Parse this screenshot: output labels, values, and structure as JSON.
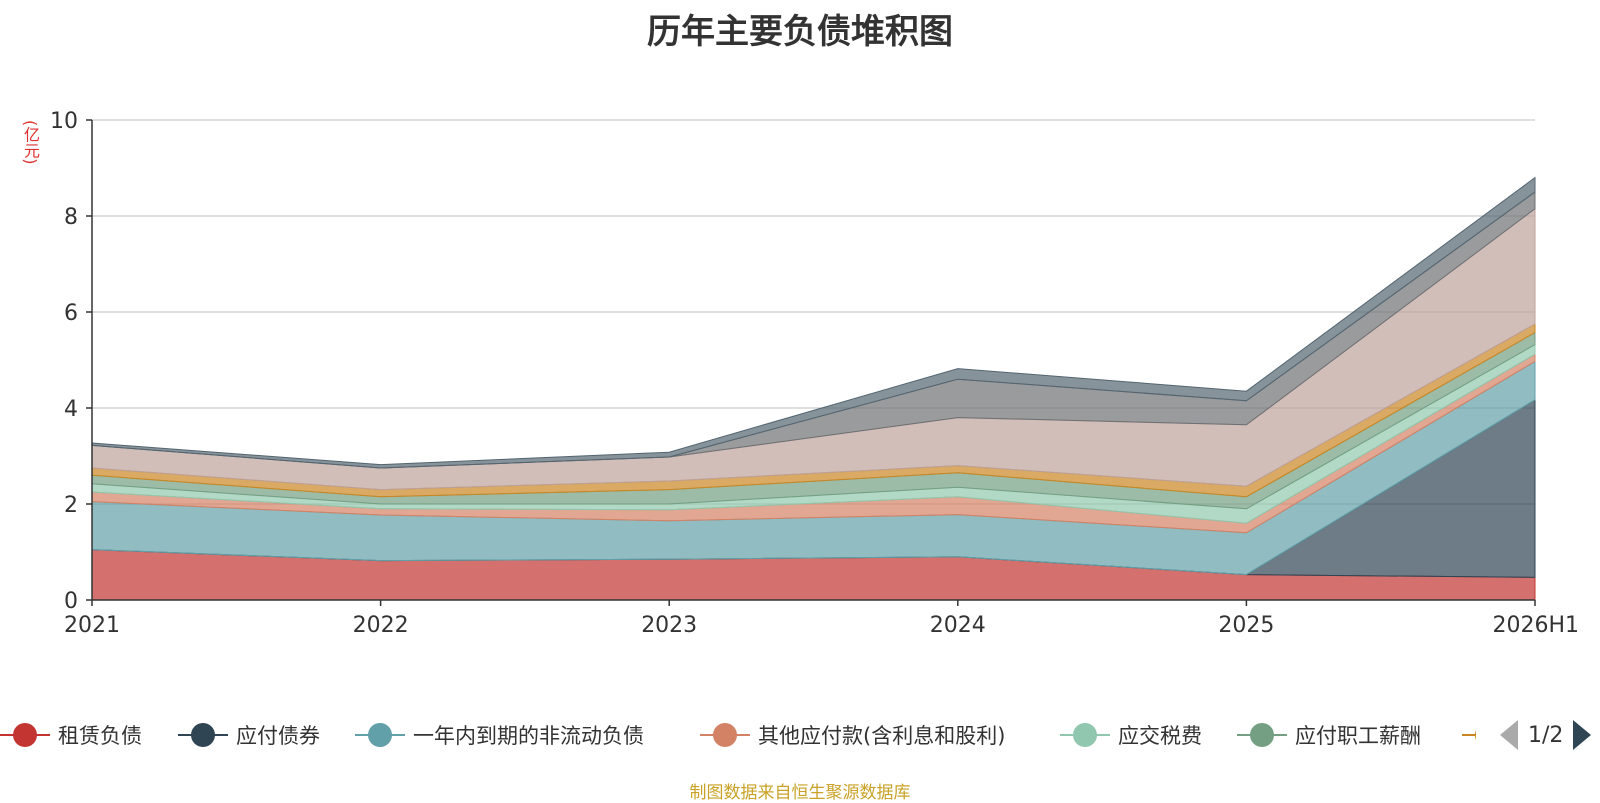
{
  "chart_data": {
    "type": "area",
    "stacked": true,
    "title": "历年主要负债堆积图",
    "unit_label": "(亿元)",
    "categories": [
      "2021",
      "2022",
      "2023",
      "2024",
      "2025",
      "2026H1"
    ],
    "ylim": [
      0,
      10
    ],
    "yticks": [
      0,
      2,
      4,
      6,
      8,
      10
    ],
    "grid": true,
    "legend_position": "bottom",
    "series": [
      {
        "name": "租赁负债",
        "color": "#c23531",
        "values": [
          1.05,
          0.82,
          0.85,
          0.9,
          0.53,
          0.47
        ]
      },
      {
        "name": "应付债券",
        "color": "#2f4554",
        "values": [
          0.0,
          0.0,
          0.0,
          0.0,
          0.0,
          3.7
        ]
      },
      {
        "name": "一年内到期的非流动负债",
        "color": "#61a0a8",
        "values": [
          1.0,
          0.95,
          0.8,
          0.88,
          0.87,
          0.8
        ]
      },
      {
        "name": "其他应付款(含利息和股利)",
        "color": "#d48265",
        "values": [
          0.2,
          0.13,
          0.23,
          0.37,
          0.2,
          0.15
        ]
      },
      {
        "name": "应交税费",
        "color": "#91c7ae",
        "values": [
          0.17,
          0.1,
          0.12,
          0.2,
          0.3,
          0.2
        ]
      },
      {
        "name": "应付职工薪酬",
        "color": "#749f83",
        "values": [
          0.18,
          0.15,
          0.3,
          0.3,
          0.25,
          0.25
        ]
      },
      {
        "name": "",
        "color": "#ca8622",
        "values": [
          0.15,
          0.15,
          0.18,
          0.15,
          0.22,
          0.18
        ]
      },
      {
        "name": "",
        "color": "#bda29a",
        "values": [
          0.47,
          0.45,
          0.5,
          1.0,
          1.28,
          2.4
        ]
      },
      {
        "name": "",
        "color": "#6e7074",
        "values": [
          0.0,
          0.0,
          0.0,
          0.8,
          0.5,
          0.35
        ]
      },
      {
        "name": "",
        "color": "#546570",
        "values": [
          0.05,
          0.07,
          0.1,
          0.22,
          0.2,
          0.3
        ]
      }
    ]
  },
  "legend": {
    "items": [
      "租赁负债",
      "应付债券",
      "一年内到期的非流动负债",
      "其他应付款(含利息和股利)",
      "应交税费",
      "应付职工薪酬"
    ],
    "page": "1/2"
  },
  "source": "制图数据来自恒生聚源数据库"
}
